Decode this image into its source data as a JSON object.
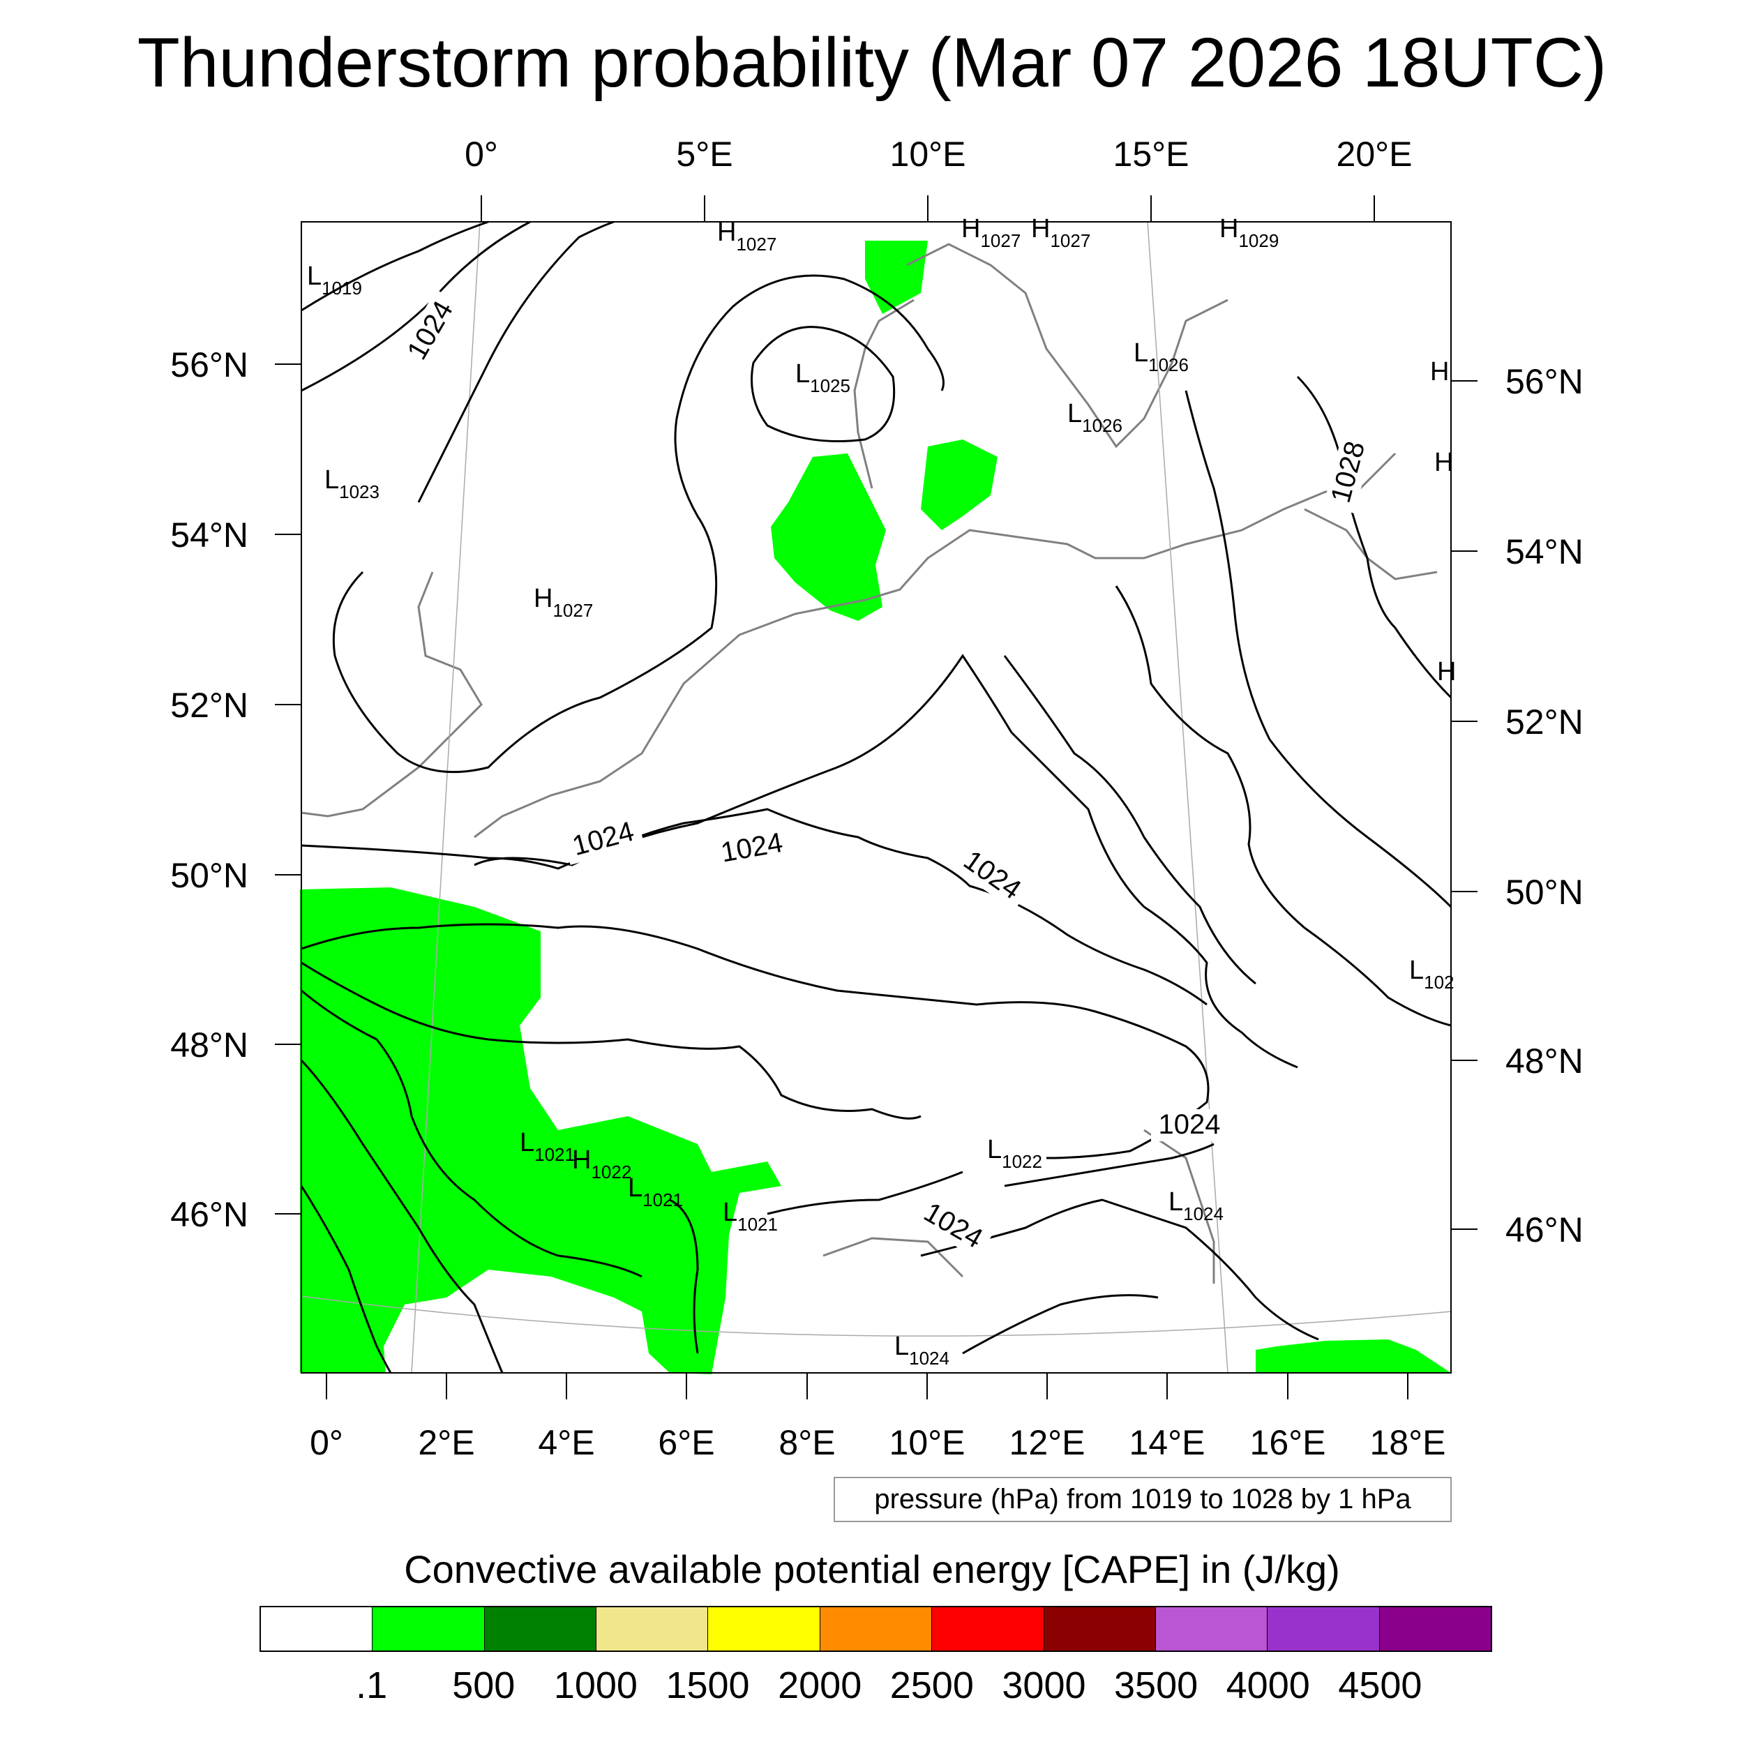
{
  "title": "Thunderstorm probability (Mar 07 2026 18UTC)",
  "top_lon_labels": [
    "0°",
    "5°E",
    "10°E",
    "15°E",
    "20°E"
  ],
  "bottom_lon_labels": [
    "0°",
    "2°E",
    "4°E",
    "6°E",
    "8°E",
    "10°E",
    "12°E",
    "14°E",
    "16°E",
    "18°E"
  ],
  "left_lat_labels": [
    "56°N",
    "54°N",
    "52°N",
    "50°N",
    "48°N",
    "46°N"
  ],
  "right_lat_labels": [
    "56°N",
    "54°N",
    "52°N",
    "50°N",
    "48°N",
    "46°N"
  ],
  "contour_labels": [
    "1024",
    "1024",
    "1028",
    "1024",
    "1024",
    "1024",
    "1024"
  ],
  "pressure_centers": [
    {
      "type": "L",
      "value": "1019"
    },
    {
      "type": "L",
      "value": "1023"
    },
    {
      "type": "H",
      "value": "1027"
    },
    {
      "type": "H",
      "value": "1027"
    },
    {
      "type": "H",
      "value": "1027"
    },
    {
      "type": "H",
      "value": "1027"
    },
    {
      "type": "H",
      "value": "1029"
    },
    {
      "type": "L",
      "value": "1025"
    },
    {
      "type": "L",
      "value": "1026"
    },
    {
      "type": "L",
      "value": "1026"
    },
    {
      "type": "L",
      "value": "1021"
    },
    {
      "type": "H",
      "value": "1022"
    },
    {
      "type": "L",
      "value": "1021"
    },
    {
      "type": "L",
      "value": "1021"
    },
    {
      "type": "L",
      "value": "1022"
    },
    {
      "type": "L",
      "value": "1024"
    },
    {
      "type": "L",
      "value": "1024"
    },
    {
      "type": "L",
      "value": "102"
    },
    {
      "type": "H",
      "value": ""
    },
    {
      "type": "H",
      "value": ""
    },
    {
      "type": "H",
      "value": ""
    }
  ],
  "pressure_note": "pressure (hPa) from 1019 to 1028 by 1 hPa",
  "colorbar": {
    "title": "Convective available potential energy [CAPE] in (J/kg)",
    "colors": [
      "#ffffff",
      "#00ff00",
      "#008000",
      "#f0e68c",
      "#ffff00",
      "#ff8c00",
      "#ff0000",
      "#8b0000",
      "#ba55d3",
      "#9932cc",
      "#8b008b"
    ],
    "labels": [
      ".1",
      "500",
      "1000",
      "1500",
      "2000",
      "2500",
      "3000",
      "3500",
      "4000",
      "4500"
    ]
  },
  "colors": {
    "cape_fill": "#00ff00",
    "coastline": "#808080",
    "isobar": "#000000",
    "grid": "#aaaaaa"
  }
}
